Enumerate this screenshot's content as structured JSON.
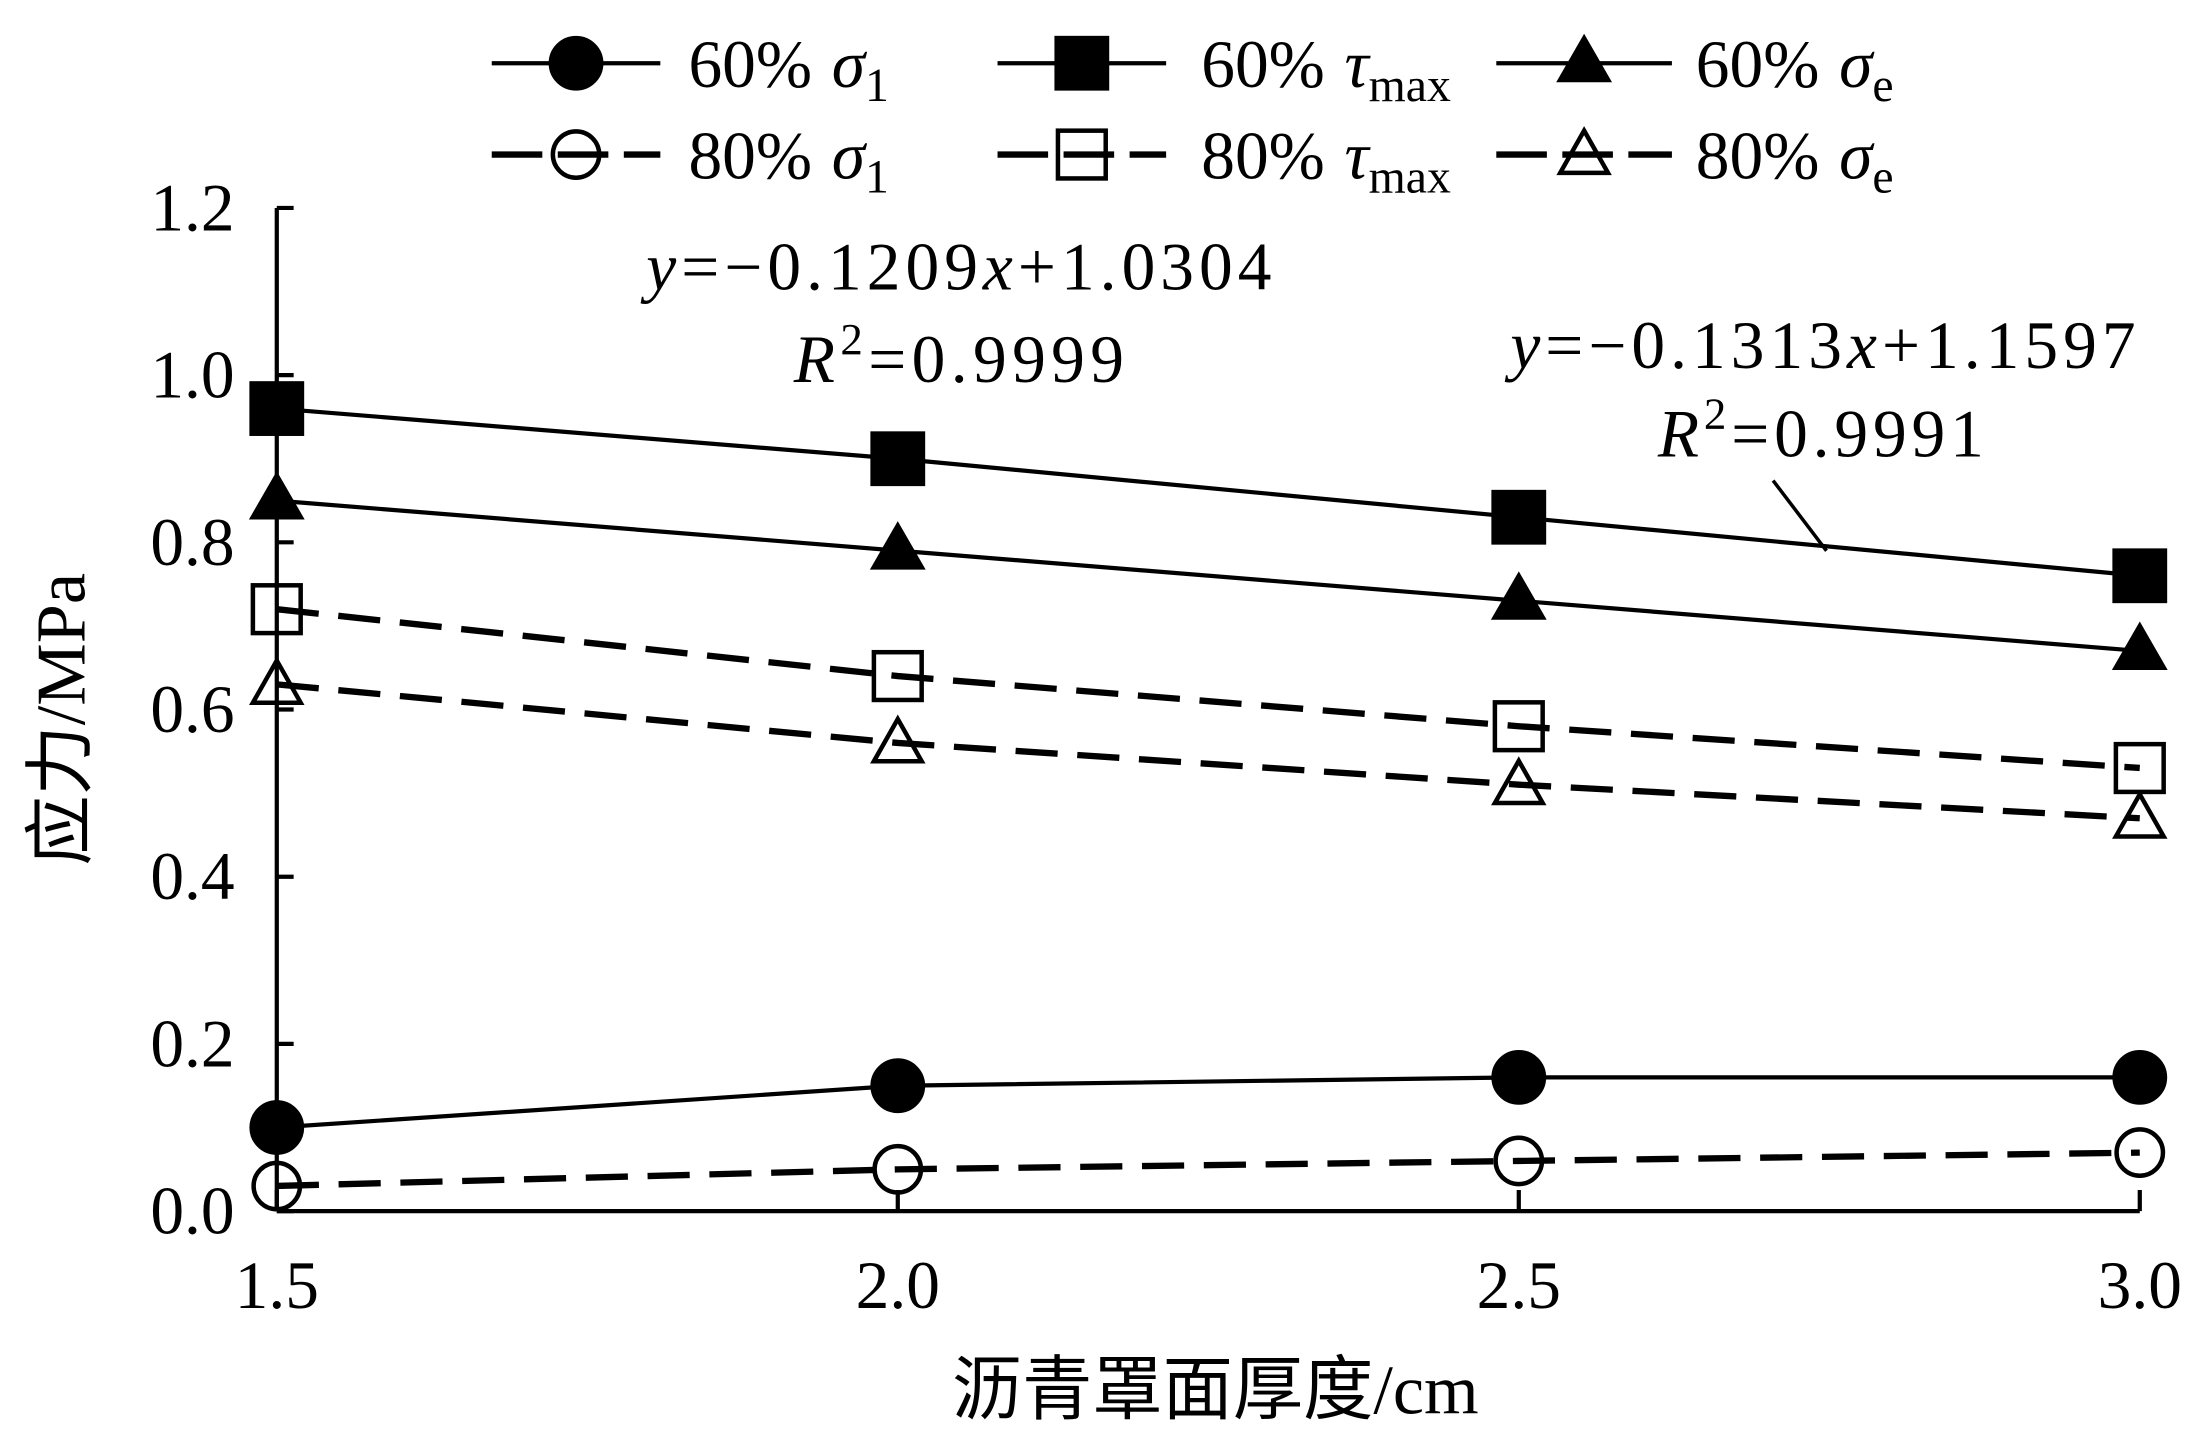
{
  "chart_data": {
    "type": "line",
    "x": [
      1.5,
      2.0,
      2.5,
      3.0
    ],
    "xlabel": "沥青罩面厚度/cm",
    "ylabel": "应力/MPa",
    "xlim": [
      1.5,
      3.0
    ],
    "ylim": [
      0.0,
      1.2
    ],
    "xticks": [
      "1.5",
      "2.0",
      "2.5",
      "3.0"
    ],
    "yticks": [
      "0.0",
      "0.2",
      "0.4",
      "0.6",
      "0.8",
      "1.0",
      "1.2"
    ],
    "grid": false,
    "legend_position": "top",
    "color": "#000000",
    "series": [
      {
        "name": {
          "prefix": "60%",
          "symbol": "σ",
          "sub": "1"
        },
        "line": "solid",
        "marker": "filled-circle",
        "values": [
          0.1,
          0.15,
          0.16,
          0.16
        ]
      },
      {
        "name": {
          "prefix": "60%",
          "symbol": "τ",
          "sub": "max"
        },
        "line": "solid",
        "marker": "filled-square",
        "values": [
          0.96,
          0.9,
          0.83,
          0.76
        ]
      },
      {
        "name": {
          "prefix": "60%",
          "symbol": "σ",
          "sub": "e"
        },
        "line": "solid",
        "marker": "filled-triangle",
        "values": [
          0.85,
          0.79,
          0.73,
          0.67
        ]
      },
      {
        "name": {
          "prefix": "80%",
          "symbol": "σ",
          "sub": "1"
        },
        "line": "dashed",
        "marker": "open-circle",
        "values": [
          0.03,
          0.05,
          0.06,
          0.07
        ]
      },
      {
        "name": {
          "prefix": "80%",
          "symbol": "τ",
          "sub": "max"
        },
        "line": "dashed",
        "marker": "open-square",
        "values": [
          0.72,
          0.64,
          0.58,
          0.53
        ]
      },
      {
        "name": {
          "prefix": "80%",
          "symbol": "σ",
          "sub": "e"
        },
        "line": "dashed",
        "marker": "open-triangle",
        "values": [
          0.63,
          0.56,
          0.51,
          0.47
        ]
      }
    ],
    "annotations": [
      {
        "equation": [
          "y",
          "=−0.1209",
          "x",
          "+1.0304"
        ],
        "r2": [
          "R",
          "2",
          "=0.9999"
        ]
      },
      {
        "equation": [
          "y",
          "=−0.1313",
          "x",
          "+1.1597"
        ],
        "r2": [
          "R",
          "2",
          "=0.9991"
        ]
      }
    ]
  }
}
